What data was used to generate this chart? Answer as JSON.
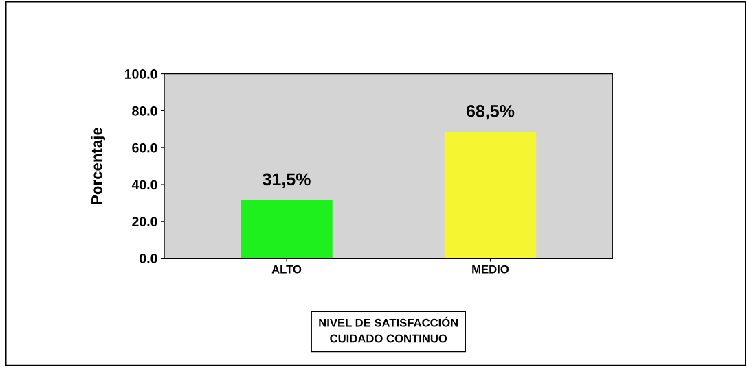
{
  "chart_data": {
    "type": "bar",
    "ylabel": "Porcentaje",
    "xlabel": "NIVEL DE SATISFACCIÓN\nCUIDADO CONTINUO",
    "categories": [
      "ALTO",
      "MEDIO"
    ],
    "values": [
      31.5,
      68.5
    ],
    "colors": [
      "#1ef01e",
      "#f5f532"
    ],
    "value_labels": [
      "31,5%",
      "68,5%"
    ],
    "ylim": [
      0,
      100
    ],
    "yticks": [
      {
        "value": 0,
        "label": "0.0"
      },
      {
        "value": 20,
        "label": "20.0"
      },
      {
        "value": 40,
        "label": "40.0"
      },
      {
        "value": 60,
        "label": "60.0"
      },
      {
        "value": 80,
        "label": "80.0"
      },
      {
        "value": 100,
        "label": "100.0"
      }
    ],
    "grid": false,
    "legend": false
  }
}
